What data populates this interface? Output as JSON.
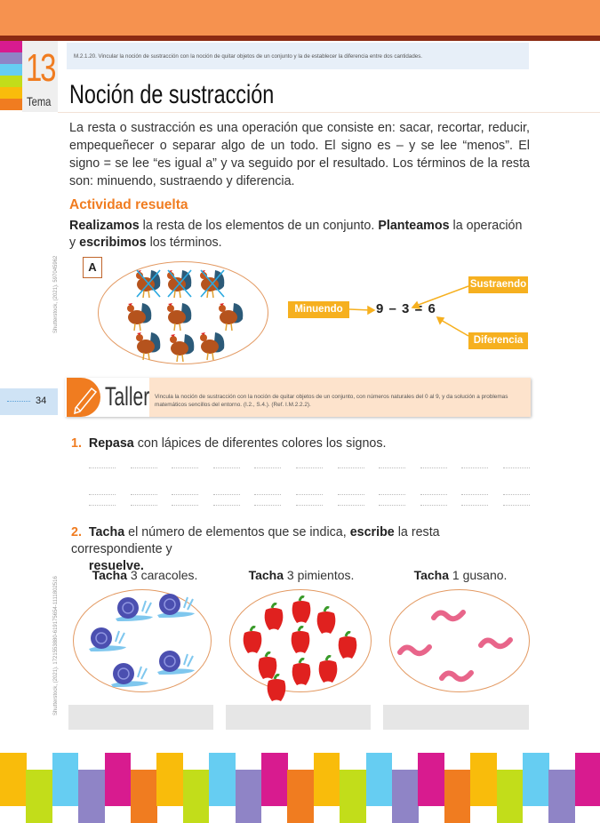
{
  "header": {
    "colors": {
      "band": "#f6924f",
      "line": "#8b2a12",
      "accent": "#f07c20",
      "tag": "#f6b01f"
    }
  },
  "tema": {
    "number": "13",
    "label": "Tema"
  },
  "objective": "M.2.1.20. Vincular la noción de sustracción con la noción de quitar objetos de un conjunto y la de establecer la diferencia entre dos cantidades.",
  "title": "Noción de sustracción",
  "intro": "La resta o sustracción es una operación que consiste en: sacar, recortar, reducir, empequeñecer o separar algo de un todo. El signo es – y se lee “menos”. El signo = se lee “es igual a” y va seguido por el resultado. Los términos de la resta son: minuendo, sustraendo y diferencia.",
  "activity": {
    "heading": "Actividad resuelta",
    "bold1": "Realizamos",
    "t1": " la resta de los elementos de un conjunto. ",
    "bold2": "Planteamos",
    "t2": " la operación y ",
    "bold3": "escribimos",
    "t3": " los términos.",
    "figure_label": "A",
    "roosters_total": 9,
    "roosters_crossed": 3,
    "minuendo": "Minuendo",
    "sustraendo": "Sustraendo",
    "diferencia": "Diferencia",
    "equation": "9 – 3 = 6",
    "credit": "Shutterstock, (2021). 597045962"
  },
  "page_number": "34",
  "taller": {
    "title": "Taller",
    "description": "Vincula la noción de sustracción con la noción de quitar objetos de un conjunto, con números naturales del 0 al 9, y da solución a problemas matemáticos sencillos del entorno. (I.2., S.4.). (Ref. I.M.2.2.2)."
  },
  "q1": {
    "number": "1.",
    "bold": "Repasa",
    "text": " con lápices de diferentes colores los signos."
  },
  "q2": {
    "number": "2.",
    "bold1": "Tacha",
    "t1": " el número de elementos que se indica, ",
    "bold2": "escribe",
    "t2": " la resta correspondiente y ",
    "bold3": "resuelve.",
    "t3": ""
  },
  "exercises": [
    {
      "bold": "Tacha",
      "text": " 3 caracoles.",
      "item": "snail",
      "count": 5
    },
    {
      "bold": "Tacha",
      "text": " 3 pimientos.",
      "item": "pepper",
      "count": 10
    },
    {
      "bold": "Tacha",
      "text": " 1 gusano.",
      "item": "worm",
      "count": 4
    }
  ],
  "credit2": "Shutterstock, (2021). 1721553880-619175654-1111802516"
}
